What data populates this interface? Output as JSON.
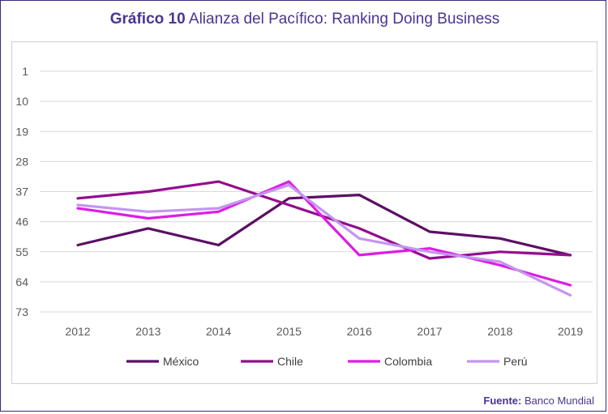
{
  "title": {
    "prefix": "Gráfico 10",
    "text": "Alianza del Pacífico: Ranking Doing Business"
  },
  "source": {
    "label": "Fuente:",
    "text": "Banco Mundial"
  },
  "colors": {
    "mexico": "#5c0f63",
    "chile": "#930d8e",
    "colombia": "#dd1ce6",
    "peru": "#c495f0",
    "grid": "#d9d9d9",
    "title": "#4a3592"
  },
  "chart_data": {
    "type": "line",
    "title": "Alianza del Pacífico: Ranking Doing Business",
    "xlabel": "",
    "ylabel": "",
    "categories": [
      "2012",
      "2013",
      "2014",
      "2015",
      "2016",
      "2017",
      "2018",
      "2019"
    ],
    "y_ticks": [
      1,
      10,
      19,
      28,
      37,
      46,
      55,
      64,
      73
    ],
    "ylim": [
      1,
      73
    ],
    "y_inverted": true,
    "grid": true,
    "legend_position": "bottom",
    "series": [
      {
        "name": "México",
        "color": "#5c0f63",
        "values": [
          53,
          48,
          53,
          39,
          38,
          49,
          51,
          56
        ]
      },
      {
        "name": "Chile",
        "color": "#930d8e",
        "values": [
          39,
          37,
          34,
          41,
          48,
          57,
          55,
          56
        ]
      },
      {
        "name": "Colombia",
        "color": "#dd1ce6",
        "values": [
          42,
          45,
          43,
          34,
          56,
          54,
          59,
          65
        ]
      },
      {
        "name": "Perú",
        "color": "#c495f0",
        "values": [
          41,
          43,
          42,
          35,
          51,
          55,
          58,
          68
        ]
      }
    ]
  }
}
